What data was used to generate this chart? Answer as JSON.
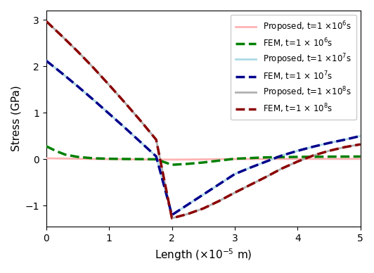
{
  "title": "",
  "xlabel": "Length (×10$^{-5}$ m)",
  "ylabel": "Stress (GPa)",
  "xlim": [
    0,
    5
  ],
  "ylim": [
    -1.45,
    3.2
  ],
  "xticks": [
    0,
    1,
    2,
    3,
    4,
    5
  ],
  "yticks": [
    -1,
    0,
    1,
    2,
    3
  ],
  "figsize": [
    5.32,
    3.88
  ],
  "dpi": 100,
  "proposed_1e6": {
    "x": [
      0.0,
      0.25,
      0.5,
      0.75,
      1.0,
      1.25,
      1.5,
      1.75,
      2.0,
      2.25,
      2.5,
      2.75,
      3.0,
      3.5,
      4.0,
      4.5,
      5.0
    ],
    "y": [
      0.02,
      0.015,
      0.01,
      0.005,
      0.002,
      0.0,
      -0.005,
      -0.008,
      -0.008,
      -0.006,
      -0.003,
      0.001,
      0.003,
      0.005,
      0.006,
      0.007,
      0.007
    ],
    "color": "#ffb3b3",
    "linestyle": "-",
    "linewidth": 2.0,
    "label": "Proposed, t=1 ×10$^6$s",
    "zorder": 3
  },
  "fem_1e6": {
    "x": [
      0.0,
      0.15,
      0.3,
      0.5,
      0.75,
      1.0,
      1.25,
      1.5,
      1.75,
      2.0,
      2.25,
      2.5,
      2.75,
      3.0,
      3.5,
      4.0,
      4.5,
      5.0
    ],
    "y": [
      0.28,
      0.18,
      0.1,
      0.05,
      0.02,
      0.01,
      0.005,
      0.002,
      -0.002,
      -0.12,
      -0.1,
      -0.07,
      -0.03,
      0.01,
      0.04,
      0.05,
      0.055,
      0.058
    ],
    "color": "#008000",
    "linestyle": "--",
    "linewidth": 2.5,
    "label": "FEM, t=1 × 10$^6$s",
    "zorder": 4
  },
  "proposed_1e7": {
    "x": [
      0.0,
      0.25,
      0.5,
      0.75,
      1.0,
      1.25,
      1.5,
      1.75,
      2.0,
      2.25,
      2.5,
      2.75,
      3.0,
      3.25,
      3.5,
      3.75,
      4.0,
      4.25,
      4.5,
      4.75,
      5.0
    ],
    "y": [
      2.12,
      1.85,
      1.57,
      1.28,
      0.98,
      0.68,
      0.37,
      0.06,
      -1.2,
      -0.98,
      -0.76,
      -0.54,
      -0.32,
      -0.18,
      -0.05,
      0.08,
      0.18,
      0.27,
      0.35,
      0.42,
      0.5
    ],
    "color": "#add8e6",
    "linestyle": "-",
    "linewidth": 2.0,
    "label": "Proposed, t=1 ×10$^7$s",
    "zorder": 3
  },
  "fem_1e7": {
    "x": [
      0.0,
      0.25,
      0.5,
      0.75,
      1.0,
      1.25,
      1.5,
      1.75,
      2.0,
      2.25,
      2.5,
      2.75,
      3.0,
      3.25,
      3.5,
      3.75,
      4.0,
      4.25,
      4.5,
      4.75,
      5.0
    ],
    "y": [
      2.12,
      1.85,
      1.57,
      1.28,
      0.98,
      0.68,
      0.37,
      0.06,
      -1.2,
      -0.98,
      -0.76,
      -0.54,
      -0.32,
      -0.18,
      -0.05,
      0.08,
      0.18,
      0.27,
      0.35,
      0.42,
      0.5
    ],
    "color": "#00008B",
    "linestyle": "--",
    "linewidth": 2.5,
    "label": "FEM, t=1 × 10$^7$s",
    "zorder": 4
  },
  "proposed_1e8": {
    "x": [
      0.0,
      0.25,
      0.5,
      0.75,
      1.0,
      1.25,
      1.5,
      1.75,
      2.0,
      2.25,
      2.5,
      2.75,
      3.0,
      3.25,
      3.5,
      3.75,
      4.0,
      4.25,
      4.5,
      4.75,
      5.0
    ],
    "y": [
      2.97,
      2.65,
      2.32,
      1.97,
      1.6,
      1.22,
      0.83,
      0.42,
      -1.27,
      -1.18,
      -1.06,
      -0.9,
      -0.72,
      -0.55,
      -0.38,
      -0.2,
      -0.05,
      0.08,
      0.18,
      0.26,
      0.32
    ],
    "color": "#b0b0b0",
    "linestyle": "-",
    "linewidth": 2.0,
    "label": "Proposed, t=1 ×10$^8$s",
    "zorder": 3
  },
  "fem_1e8": {
    "x": [
      0.0,
      0.25,
      0.5,
      0.75,
      1.0,
      1.25,
      1.5,
      1.75,
      2.0,
      2.25,
      2.5,
      2.75,
      3.0,
      3.25,
      3.5,
      3.75,
      4.0,
      4.25,
      4.5,
      4.75,
      5.0
    ],
    "y": [
      2.97,
      2.65,
      2.32,
      1.97,
      1.6,
      1.22,
      0.83,
      0.42,
      -1.27,
      -1.18,
      -1.06,
      -0.9,
      -0.72,
      -0.55,
      -0.38,
      -0.2,
      -0.05,
      0.08,
      0.18,
      0.26,
      0.32
    ],
    "color": "#8B0000",
    "linestyle": "--",
    "linewidth": 2.5,
    "label": "FEM, t=1 × 10$^8$s",
    "zorder": 5
  }
}
